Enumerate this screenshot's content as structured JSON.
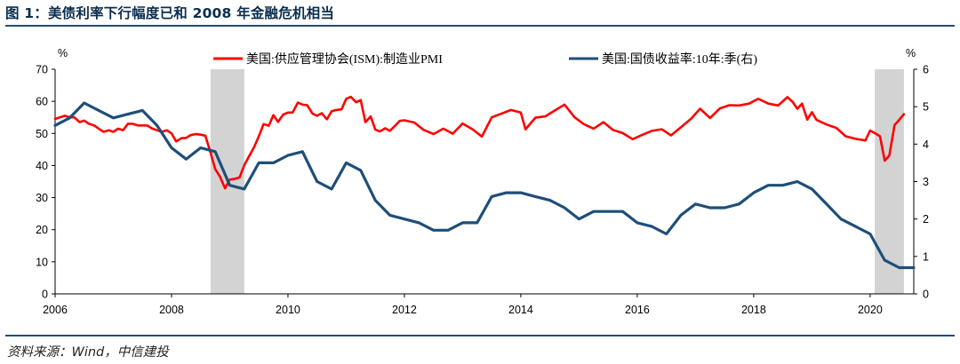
{
  "title": "图 1：美债利率下行幅度已和 2008 年金融危机相当",
  "source": "资料来源：Wind，中信建投",
  "chart_data": {
    "type": "line",
    "left_unit": "%",
    "right_unit": "%",
    "left_ylim": [
      0,
      70
    ],
    "left_ticks": [
      0,
      10,
      20,
      30,
      40,
      50,
      60,
      70
    ],
    "right_ylim": [
      0,
      6
    ],
    "right_ticks": [
      0,
      1,
      2,
      3,
      4,
      5,
      6
    ],
    "xlim": [
      2006.0,
      2020.75
    ],
    "x_ticks": [
      "2006",
      "2008",
      "2010",
      "2012",
      "2014",
      "2016",
      "2018",
      "2020"
    ],
    "shaded_periods": [
      [
        2008.67,
        2009.25
      ],
      [
        2020.08,
        2020.58
      ]
    ],
    "colors": {
      "pmi": "#ff0000",
      "yield": "#1f4e79",
      "shade": "#d3d3d3"
    },
    "series": [
      {
        "name": "美国:供应管理协会(ISM):制造业PMI",
        "axis": "left",
        "x": [
          2006.0,
          2006.08,
          2006.17,
          2006.25,
          2006.33,
          2006.42,
          2006.5,
          2006.58,
          2006.67,
          2006.75,
          2006.83,
          2006.92,
          2007.0,
          2007.08,
          2007.17,
          2007.25,
          2007.33,
          2007.42,
          2007.5,
          2007.58,
          2007.67,
          2007.75,
          2007.83,
          2007.92,
          2008.0,
          2008.08,
          2008.17,
          2008.25,
          2008.33,
          2008.42,
          2008.5,
          2008.58,
          2008.67,
          2008.75,
          2008.83,
          2008.92,
          2009.0,
          2009.08,
          2009.17,
          2009.25,
          2009.33,
          2009.42,
          2009.5,
          2009.58,
          2009.67,
          2009.75,
          2009.83,
          2009.92,
          2010.0,
          2010.08,
          2010.17,
          2010.25,
          2010.33,
          2010.42,
          2010.5,
          2010.58,
          2010.67,
          2010.75,
          2010.83,
          2010.92,
          2011.0,
          2011.08,
          2011.17,
          2011.25,
          2011.33,
          2011.42,
          2011.5,
          2011.58,
          2011.67,
          2011.75,
          2011.83,
          2011.92,
          2012.0,
          2012.17,
          2012.33,
          2012.5,
          2012.67,
          2012.83,
          2013.0,
          2013.17,
          2013.33,
          2013.5,
          2013.67,
          2013.83,
          2014.0,
          2014.08,
          2014.25,
          2014.42,
          2014.58,
          2014.75,
          2014.92,
          2015.08,
          2015.25,
          2015.42,
          2015.58,
          2015.75,
          2015.92,
          2016.08,
          2016.25,
          2016.42,
          2016.58,
          2016.75,
          2016.92,
          2017.08,
          2017.25,
          2017.42,
          2017.58,
          2017.75,
          2017.92,
          2018.08,
          2018.25,
          2018.42,
          2018.58,
          2018.67,
          2018.75,
          2018.83,
          2018.92,
          2019.0,
          2019.08,
          2019.25,
          2019.42,
          2019.58,
          2019.75,
          2019.92,
          2020.0,
          2020.08,
          2020.17,
          2020.25,
          2020.33,
          2020.42,
          2020.5,
          2020.58
        ],
        "values": [
          54.5,
          55,
          55.5,
          55,
          55,
          53.5,
          54,
          53,
          52.5,
          51.5,
          50.5,
          51,
          50.5,
          51.5,
          51,
          53,
          53,
          52.5,
          52.5,
          52.5,
          51.5,
          51,
          50.5,
          51,
          50,
          47.5,
          48.5,
          48.6,
          49.5,
          49.8,
          49.6,
          49.3,
          44,
          38.9,
          36.6,
          32.9,
          35.6,
          35.8,
          36.3,
          40.1,
          42.8,
          45.8,
          49.1,
          52.9,
          52.4,
          55.7,
          53.6,
          55.9,
          56.5,
          56.5,
          59.6,
          59,
          58.8,
          56.2,
          55.5,
          56.3,
          54.4,
          56.9,
          57.3,
          57.5,
          60.8,
          61.4,
          59.7,
          60.4,
          53.5,
          55.3,
          51.2,
          50.6,
          51.6,
          50.8,
          52.2,
          53.9,
          54.1,
          53.4,
          51.1,
          49.8,
          51.5,
          49.9,
          53.1,
          51.3,
          49,
          55,
          56.2,
          57.3,
          56.5,
          51.3,
          54.9,
          55.3,
          57.1,
          59,
          55.1,
          52.9,
          51.5,
          53.5,
          51.1,
          50.1,
          48.2,
          49.5,
          50.8,
          51.3,
          49.4,
          51.9,
          54.5,
          57.7,
          54.8,
          57.8,
          58.8,
          58.7,
          59.3,
          60.8,
          59.3,
          58.7,
          61.3,
          59.8,
          57.7,
          59.3,
          54.3,
          56.6,
          54.2,
          52.8,
          51.7,
          49.1,
          48.3,
          47.8,
          50.9,
          50.1,
          49.1,
          41.5,
          43.1,
          52.6,
          54.2,
          56
        ]
      },
      {
        "name": "美国:国债收益率:10年:季(右)",
        "axis": "right",
        "x": [
          2006.0,
          2006.25,
          2006.5,
          2006.75,
          2007.0,
          2007.25,
          2007.5,
          2007.75,
          2008.0,
          2008.25,
          2008.5,
          2008.75,
          2009.0,
          2009.25,
          2009.5,
          2009.75,
          2010.0,
          2010.25,
          2010.5,
          2010.75,
          2011.0,
          2011.25,
          2011.5,
          2011.75,
          2012.0,
          2012.25,
          2012.5,
          2012.75,
          2013.0,
          2013.25,
          2013.5,
          2013.75,
          2014.0,
          2014.25,
          2014.5,
          2014.75,
          2015.0,
          2015.25,
          2015.5,
          2015.75,
          2016.0,
          2016.25,
          2016.5,
          2016.75,
          2017.0,
          2017.25,
          2017.5,
          2017.75,
          2018.0,
          2018.25,
          2018.5,
          2018.75,
          2019.0,
          2019.25,
          2019.5,
          2019.75,
          2020.0,
          2020.25,
          2020.5,
          2020.75
        ],
        "values": [
          4.5,
          4.7,
          5.1,
          4.9,
          4.7,
          4.8,
          4.9,
          4.5,
          3.9,
          3.6,
          3.9,
          3.8,
          2.9,
          2.8,
          3.5,
          3.5,
          3.7,
          3.8,
          3.0,
          2.8,
          3.5,
          3.3,
          2.5,
          2.1,
          2.0,
          1.9,
          1.7,
          1.7,
          1.9,
          1.9,
          2.6,
          2.7,
          2.7,
          2.6,
          2.5,
          2.3,
          2.0,
          2.2,
          2.2,
          2.2,
          1.9,
          1.8,
          1.6,
          2.1,
          2.4,
          2.3,
          2.3,
          2.4,
          2.7,
          2.9,
          2.9,
          3.0,
          2.8,
          2.4,
          2.0,
          1.8,
          1.6,
          0.9,
          0.7,
          0.7
        ]
      }
    ]
  }
}
